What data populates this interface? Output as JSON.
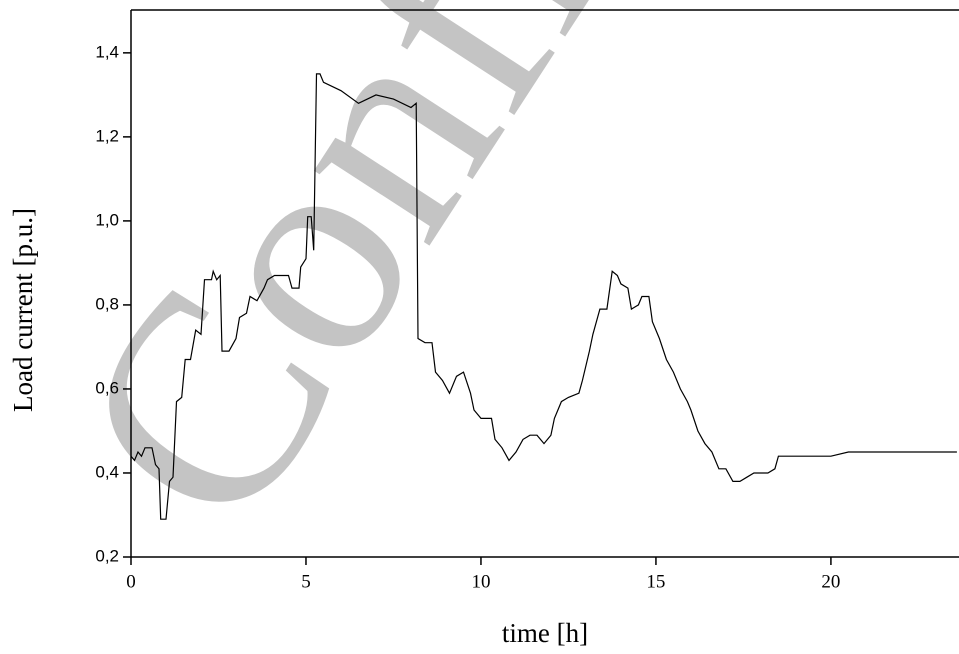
{
  "chart_data": {
    "type": "line",
    "watermark": "Confid",
    "x_label": "time [h]",
    "y_label": "Load current [p.u.]",
    "xlim": [
      0,
      23.66
    ],
    "ylim": [
      0.2,
      1.502
    ],
    "xticks": [
      0,
      5,
      10,
      15,
      20
    ],
    "yticks": [
      {
        "value": 0.2,
        "label": "0,2"
      },
      {
        "value": 0.4,
        "label": "0,4"
      },
      {
        "value": 0.6,
        "label": "0,6"
      },
      {
        "value": 0.8,
        "label": "0,8"
      },
      {
        "value": 1.0,
        "label": "1,0"
      },
      {
        "value": 1.2,
        "label": "1,2"
      },
      {
        "value": 1.4,
        "label": "1,4"
      }
    ],
    "color": "#000000",
    "x": [
      0,
      0.1,
      0.2,
      0.3,
      0.4,
      0.6,
      0.7,
      0.8,
      0.85,
      1.0,
      1.1,
      1.2,
      1.3,
      1.45,
      1.55,
      1.7,
      1.85,
      2.0,
      2.1,
      2.3,
      2.35,
      2.45,
      2.55,
      2.6,
      2.8,
      3.0,
      3.1,
      3.3,
      3.4,
      3.6,
      3.8,
      3.9,
      4.1,
      4.5,
      4.6,
      4.8,
      4.85,
      5.0,
      5.05,
      5.15,
      5.22,
      5.3,
      5.4,
      5.5,
      6,
      6.5,
      7,
      7.5,
      8,
      8.15,
      8.2,
      8.4,
      8.6,
      8.7,
      8.9,
      9.1,
      9.3,
      9.5,
      9.7,
      9.8,
      10,
      10.3,
      10.4,
      10.6,
      10.8,
      11,
      11.2,
      11.4,
      11.6,
      11.8,
      12.0,
      12.1,
      12.3,
      12.5,
      12.8,
      12.9,
      13.1,
      13.2,
      13.4,
      13.6,
      13.75,
      13.9,
      14.0,
      14.2,
      14.3,
      14.5,
      14.6,
      14.8,
      14.9,
      15.1,
      15.3,
      15.5,
      15.7,
      15.9,
      16.0,
      16.2,
      16.4,
      16.6,
      16.8,
      17.0,
      17.2,
      17.4,
      17.6,
      17.8,
      18.0,
      18.2,
      18.4,
      18.5,
      19,
      19.5,
      20,
      20.5,
      21,
      22,
      23,
      23.6
    ],
    "values": [
      0.44,
      0.43,
      0.45,
      0.44,
      0.46,
      0.46,
      0.42,
      0.41,
      0.29,
      0.29,
      0.38,
      0.39,
      0.57,
      0.58,
      0.67,
      0.67,
      0.74,
      0.73,
      0.86,
      0.86,
      0.88,
      0.86,
      0.87,
      0.69,
      0.69,
      0.72,
      0.77,
      0.78,
      0.82,
      0.81,
      0.84,
      0.86,
      0.87,
      0.87,
      0.84,
      0.84,
      0.89,
      0.91,
      1.01,
      1.01,
      0.93,
      1.35,
      1.35,
      1.33,
      1.31,
      1.28,
      1.3,
      1.29,
      1.27,
      1.28,
      0.72,
      0.71,
      0.71,
      0.64,
      0.62,
      0.59,
      0.63,
      0.64,
      0.59,
      0.55,
      0.53,
      0.53,
      0.48,
      0.46,
      0.43,
      0.45,
      0.48,
      0.49,
      0.49,
      0.47,
      0.49,
      0.53,
      0.57,
      0.58,
      0.59,
      0.62,
      0.69,
      0.73,
      0.79,
      0.79,
      0.88,
      0.87,
      0.85,
      0.84,
      0.79,
      0.8,
      0.82,
      0.82,
      0.76,
      0.72,
      0.67,
      0.64,
      0.6,
      0.57,
      0.55,
      0.5,
      0.47,
      0.45,
      0.41,
      0.41,
      0.38,
      0.38,
      0.39,
      0.4,
      0.4,
      0.4,
      0.41,
      0.44,
      0.44,
      0.44,
      0.44,
      0.45,
      0.45,
      0.45,
      0.45,
      0.45
    ]
  }
}
